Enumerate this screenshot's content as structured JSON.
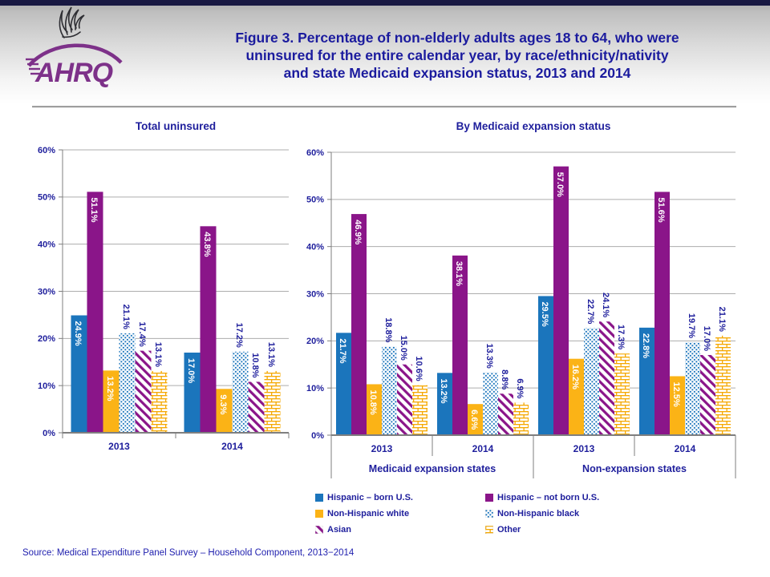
{
  "header": {
    "title_lines": [
      "Figure 3. Percentage of non-elderly adults ages 18 to 64, who were",
      "uninsured for the entire calendar year, by race/ethnicity/nativity",
      "and state Medicaid expansion status, 2013 and 2014"
    ]
  },
  "logo": {
    "text": "AHRQ",
    "icon": "hhs-eagle-icon"
  },
  "colors": {
    "navy_text": "#1E1E9C",
    "title_navy": "#1B1B9E",
    "blue": "#1B75BC",
    "purple": "#8A1589",
    "orange": "#FBB316",
    "brick_orange": "#F5A800",
    "gridline": "#ADADAD",
    "axis": "#7F7F7F",
    "header_top_bar": "#191943",
    "logo_purple": "#7D3189",
    "label_white": "#FFFFFF"
  },
  "chart_data": [
    {
      "type": "bar",
      "title": "Total uninsured",
      "categories": [
        "2013",
        "2014"
      ],
      "ylim": [
        0,
        60
      ],
      "ytick_step": 10,
      "yticks": [
        "0%",
        "10%",
        "20%",
        "30%",
        "40%",
        "50%",
        "60%"
      ],
      "grid": true,
      "value_format": "{v}%",
      "series": [
        {
          "name": "Hispanic – born U.S.",
          "fill": "solid-blue",
          "label_position": "inside",
          "values": [
            24.9,
            17.0
          ]
        },
        {
          "name": "Hispanic – not born U.S.",
          "fill": "solid-purple",
          "label_position": "inside",
          "values": [
            51.1,
            43.8
          ]
        },
        {
          "name": "Non-Hispanic white",
          "fill": "solid-orange",
          "label_position": "inside",
          "values": [
            13.2,
            9.3
          ]
        },
        {
          "name": "Non-Hispanic black",
          "fill": "dots-blue",
          "label_position": "above",
          "values": [
            21.1,
            17.2
          ]
        },
        {
          "name": "Asian",
          "fill": "stripes-purple",
          "label_position": "above",
          "values": [
            17.4,
            10.8
          ]
        },
        {
          "name": "Other",
          "fill": "bricks-orange",
          "label_position": "above",
          "values": [
            13.1,
            13.1
          ]
        }
      ]
    },
    {
      "type": "bar",
      "title": "By Medicaid expansion status",
      "categories": [
        "2013",
        "2014",
        "2013",
        "2014"
      ],
      "groups": [
        {
          "label": "Medicaid expansion states",
          "span": [
            0,
            2
          ]
        },
        {
          "label": "Non-expansion states",
          "span": [
            2,
            4
          ]
        }
      ],
      "ylim": [
        0,
        60
      ],
      "ytick_step": 10,
      "yticks": [
        "0%",
        "10%",
        "20%",
        "30%",
        "40%",
        "50%",
        "60%"
      ],
      "grid": true,
      "value_format": "{v}%",
      "series": [
        {
          "name": "Hispanic – born U.S.",
          "fill": "solid-blue",
          "label_position": "inside",
          "values": [
            21.7,
            13.2,
            29.5,
            22.8
          ]
        },
        {
          "name": "Hispanic – not born U.S.",
          "fill": "solid-purple",
          "label_position": "inside",
          "values": [
            46.9,
            38.1,
            57.0,
            51.6
          ]
        },
        {
          "name": "Non-Hispanic white",
          "fill": "solid-orange",
          "label_position": "inside",
          "values": [
            10.8,
            6.6,
            16.2,
            12.5
          ]
        },
        {
          "name": "Non-Hispanic black",
          "fill": "dots-blue",
          "label_position": "above",
          "values": [
            18.8,
            13.3,
            22.7,
            19.7
          ]
        },
        {
          "name": "Asian",
          "fill": "stripes-purple",
          "label_position": "above",
          "values": [
            15.0,
            8.8,
            24.1,
            17.0
          ]
        },
        {
          "name": "Other",
          "fill": "bricks-orange",
          "label_position": "above",
          "values": [
            10.6,
            6.9,
            17.3,
            21.1
          ]
        }
      ]
    }
  ],
  "legend": {
    "items": [
      {
        "label": "Hispanic – born U.S.",
        "swatch": "solid-blue"
      },
      {
        "label": "Hispanic – not born U.S.",
        "swatch": "solid-purple"
      },
      {
        "label": "Non-Hispanic white",
        "swatch": "solid-orange"
      },
      {
        "label": "Non-Hispanic black",
        "swatch": "dots-blue"
      },
      {
        "label": "Asian",
        "swatch": "stripes-purple"
      },
      {
        "label": "Other",
        "swatch": "bricks-orange"
      }
    ]
  },
  "source": {
    "text": "Source: Medical Expenditure Panel Survey – Household Component, 2013−2014"
  }
}
